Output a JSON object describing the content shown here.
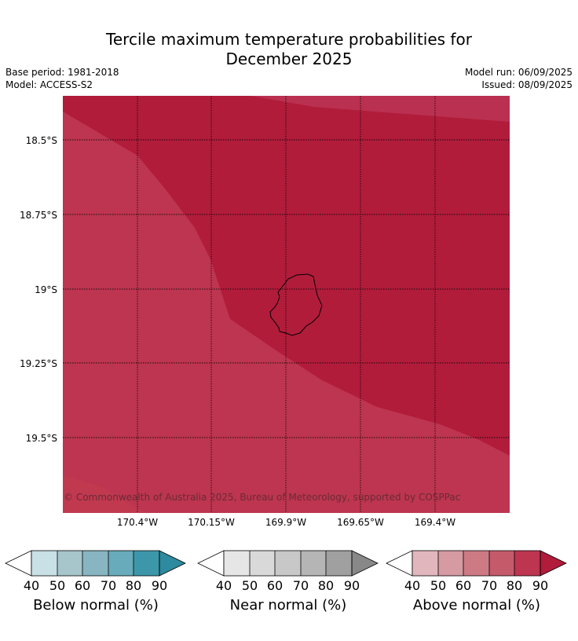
{
  "header": {
    "title_line1": "Tercile maximum temperature probabilities for",
    "title_line2": "December 2025",
    "base_period": "Base period: 1981-2018",
    "model": "Model: ACCESS-S2",
    "model_run": "Model run: 06/09/2025",
    "issued": "Issued: 08/09/2025"
  },
  "map": {
    "lat_labels": [
      "18.5°S",
      "18.75°S",
      "19°S",
      "19.25°S",
      "19.5°S"
    ],
    "lon_labels": [
      "170.4°W",
      "170.15°W",
      "169.9°W",
      "169.65°W",
      "169.4°W"
    ],
    "copyright": "© Commonwealth of Australia 2025, Bureau of Meteorology, supported by COSPPac",
    "colors": {
      "above_90": "#b11c3b",
      "above_80": "#bd3550"
    }
  },
  "colorbars": [
    {
      "title": "Below normal (%)",
      "ticks": [
        "40",
        "50",
        "60",
        "70",
        "80",
        "90"
      ],
      "colors": [
        "#c8e0e6",
        "#a7c6cc",
        "#87b5c1",
        "#68abba",
        "#3d97aa",
        "#2e8a9e"
      ]
    },
    {
      "title": "Near normal (%)",
      "ticks": [
        "40",
        "50",
        "60",
        "70",
        "80",
        "90"
      ],
      "colors": [
        "#e6e6e6",
        "#d9d9d9",
        "#c8c8c8",
        "#b5b5b5",
        "#a0a0a0",
        "#888888"
      ]
    },
    {
      "title": "Above normal (%)",
      "ticks": [
        "40",
        "50",
        "60",
        "70",
        "80",
        "90"
      ],
      "colors": [
        "#e1b7bd",
        "#d59aa2",
        "#cd7a84",
        "#c55a6b",
        "#bd3550",
        "#b11c3b"
      ]
    }
  ]
}
